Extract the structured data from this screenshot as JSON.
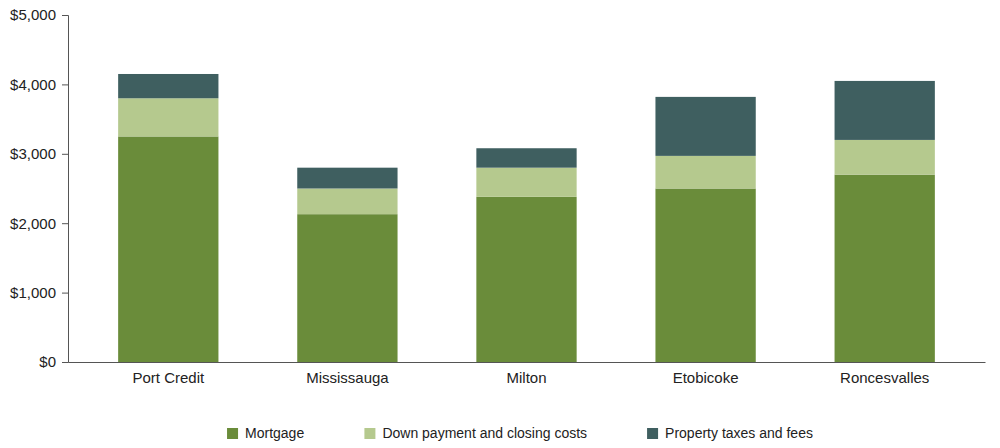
{
  "chart_data": {
    "type": "bar",
    "stacked": true,
    "grid": false,
    "legend": "bottom",
    "categories": [
      "Port Credit",
      "Mississauga",
      "Milton",
      "Etobicoke",
      "Roncesvalles"
    ],
    "series": [
      {
        "name": "Mortgage",
        "color": "#6a8c3a",
        "values": [
          3250,
          2130,
          2380,
          2500,
          2700
        ]
      },
      {
        "name": "Down payment and closing costs",
        "color": "#b5c98e",
        "values": [
          550,
          370,
          420,
          470,
          500
        ]
      },
      {
        "name": "Property taxes and fees",
        "color": "#3f5f60",
        "values": [
          350,
          300,
          280,
          850,
          850
        ]
      }
    ],
    "ylim": [
      0,
      5000
    ],
    "yticks": [
      {
        "value": 0,
        "label": "$0"
      },
      {
        "value": 1000,
        "label": "$1,000"
      },
      {
        "value": 2000,
        "label": "$2,000"
      },
      {
        "value": 3000,
        "label": "$3,000"
      },
      {
        "value": 4000,
        "label": "$4,000"
      },
      {
        "value": 5000,
        "label": "$5,000"
      }
    ]
  }
}
